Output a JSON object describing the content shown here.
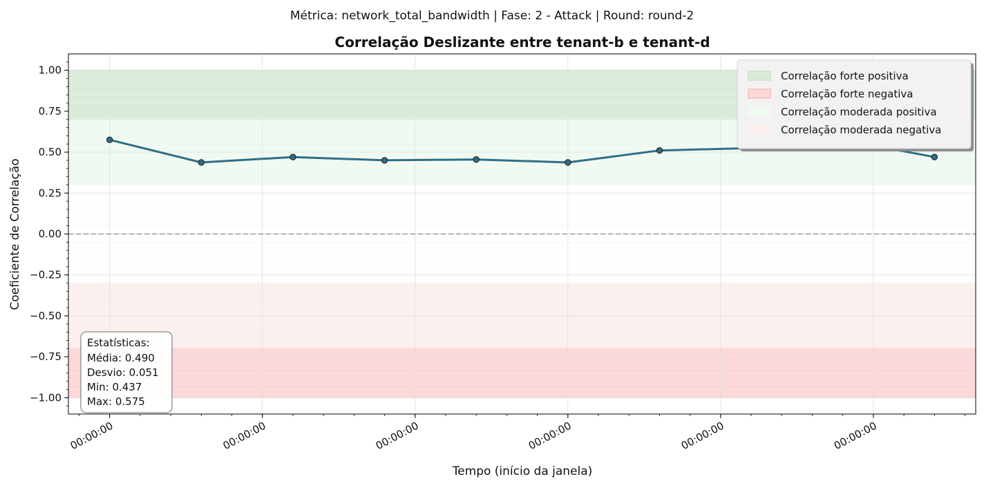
{
  "suptitle": "Métrica: network_total_bandwidth | Fase: 2 - Attack | Round: round-2",
  "colors": {
    "line": "#2e6e8a",
    "marker_fill": "#2e6e8a",
    "marker_edge": "#1b1b1b",
    "strong_pos": "#d9ecd9",
    "strong_pos_edge": "#b7dcb7",
    "strong_neg": "#fdd8d8",
    "strong_neg_edge": "#f2a8a8",
    "mod_pos": "#f0faf0",
    "mod_neg": "#fcf0ef",
    "zero_line": "#b0b0b0",
    "grid": "#e0e0e0"
  },
  "chart_data": {
    "type": "line",
    "title": "Correlação Deslizante entre tenant-b e tenant-d",
    "xlabel": "Tempo (início da janela)",
    "ylabel": "Coeficiente de Correlação",
    "ylim": [
      -1.1,
      1.1
    ],
    "yticks": [
      1.0,
      0.75,
      0.5,
      0.25,
      0.0,
      -0.25,
      -0.5,
      -0.75,
      -1.0
    ],
    "ytick_labels": [
      "1.00",
      "0.75",
      "0.50",
      "0.25",
      "0.00",
      "−0.25",
      "−0.50",
      "−0.75",
      "−1.00"
    ],
    "xticks": [
      0,
      1,
      2,
      3,
      4,
      5
    ],
    "xtick_labels": [
      "00:00:00",
      "00:00:00",
      "00:00:00",
      "00:00:00",
      "00:00:00",
      "00:00:00"
    ],
    "xlim": [
      -0.27,
      5.67
    ],
    "grid": true,
    "series": [
      {
        "x": [
          0,
          0.6,
          1.2,
          1.8,
          2.4,
          3.0,
          3.6,
          4.2,
          4.8,
          5.4
        ],
        "values": [
          0.575,
          0.437,
          0.47,
          0.45,
          0.455,
          0.437,
          0.51,
          0.525,
          0.575,
          0.47
        ]
      }
    ],
    "bands": [
      {
        "label": "Correlação forte positiva",
        "range": [
          0.7,
          1.0
        ],
        "kind": "strong_pos"
      },
      {
        "label": "Correlação forte negativa",
        "range": [
          -1.0,
          -0.7
        ],
        "kind": "strong_neg"
      },
      {
        "label": "Correlação moderada positiva",
        "range": [
          0.3,
          0.7
        ],
        "kind": "mod_pos"
      },
      {
        "label": "Correlação moderada negativa",
        "range": [
          -0.7,
          -0.3
        ],
        "kind": "mod_neg"
      }
    ],
    "reference_line": 0.0,
    "legend_position": "top-right",
    "stats_box": {
      "title": "Estatísticas:",
      "lines": [
        "Média: 0.490",
        "Desvio: 0.051",
        "Min: 0.437",
        "Max: 0.575"
      ]
    }
  }
}
